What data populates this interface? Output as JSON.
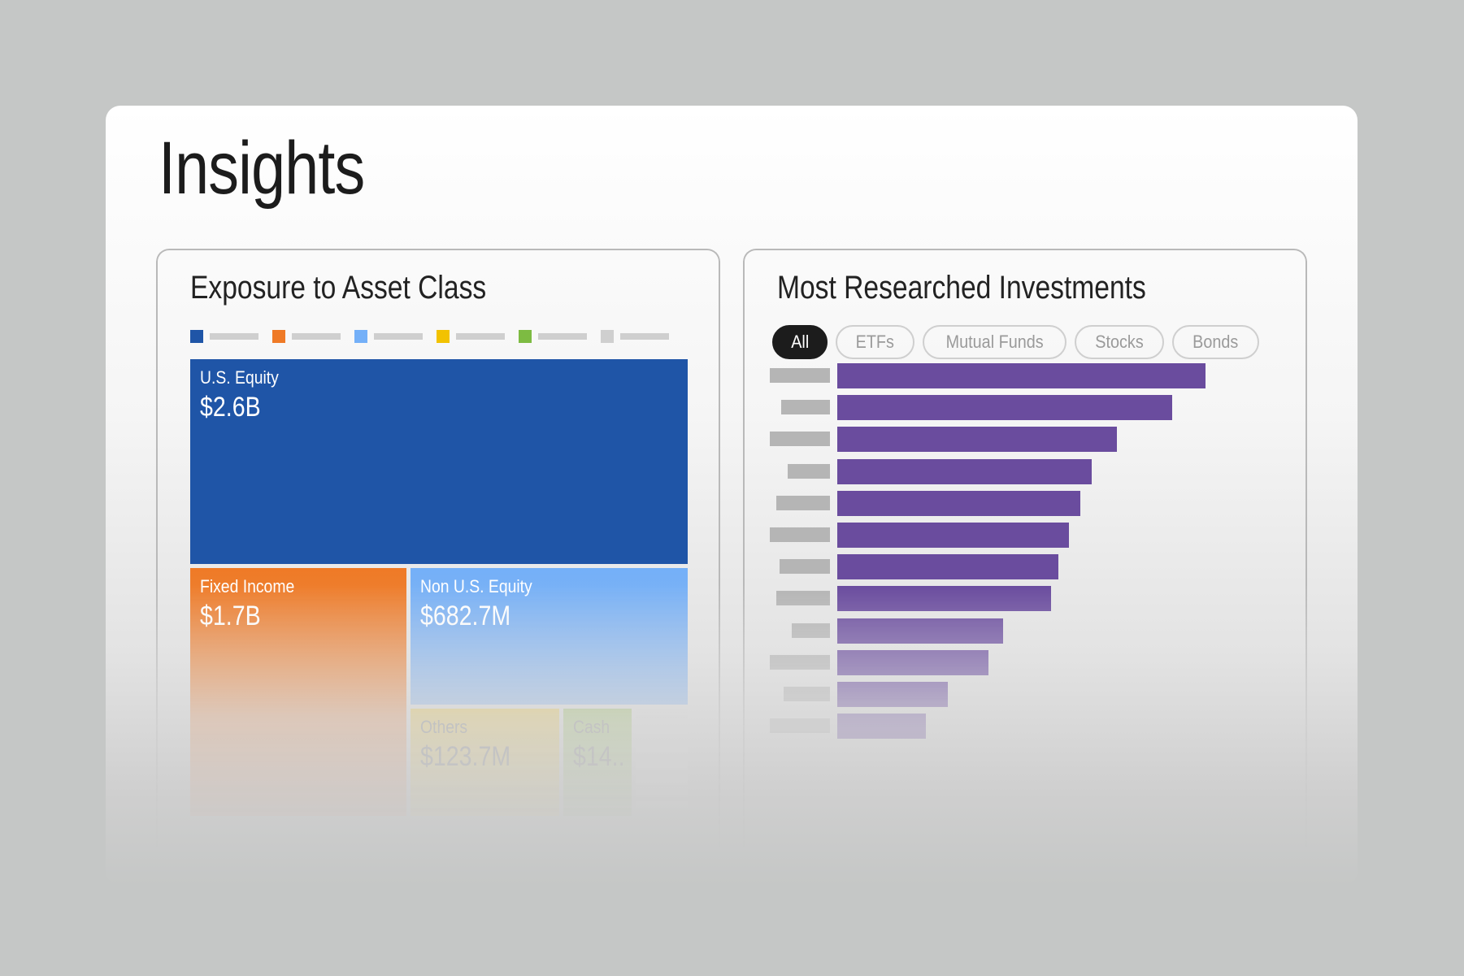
{
  "page": {
    "title": "Insights"
  },
  "exposure": {
    "title": "Exposure to Asset Class",
    "legend": [
      {
        "color": "#1f55a7"
      },
      {
        "color": "#ef7a26"
      },
      {
        "color": "#74b0f8"
      },
      {
        "color": "#f2c200"
      },
      {
        "color": "#7dbb42"
      },
      {
        "color": "#cfcfcf"
      }
    ],
    "tiles": {
      "us_equity": {
        "label": "U.S. Equity",
        "value": "$2.6B",
        "color": "#1f55a7"
      },
      "fixed_income": {
        "label": "Fixed Income",
        "value": "$1.7B",
        "color": "#ef7a26"
      },
      "non_us_equity": {
        "label": "Non U.S. Equity",
        "value": "$682.7M",
        "color": "#74b0f8"
      },
      "others": {
        "label": "Others",
        "value": "$123.7M",
        "color": "#e6c54f"
      },
      "cash": {
        "label": "Cash",
        "value": "$14..",
        "color": "#9fc069"
      }
    }
  },
  "research": {
    "title": "Most Researched Investments",
    "filters": [
      {
        "label": "All",
        "active": true
      },
      {
        "label": "ETFs",
        "active": false
      },
      {
        "label": "Mutual Funds",
        "active": false
      },
      {
        "label": "Stocks",
        "active": false
      },
      {
        "label": "Bonds",
        "active": false
      }
    ]
  },
  "chart_data": {
    "type": "bar",
    "orientation": "horizontal",
    "title": "Most Researched Investments",
    "values": [
      100,
      91,
      76,
      69,
      66,
      63,
      60,
      58,
      45,
      41,
      30,
      24
    ],
    "color": "#6a4c9e"
  }
}
